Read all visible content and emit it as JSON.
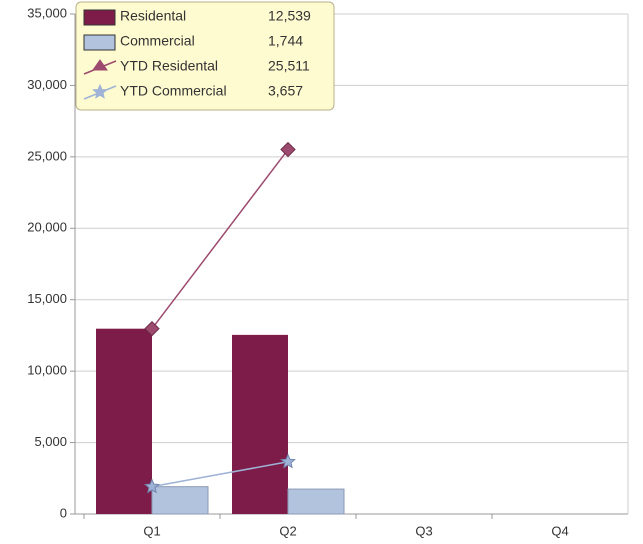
{
  "chart_data": {
    "type": "bar",
    "categories": [
      "Q1",
      "Q2",
      "Q3",
      "Q4"
    ],
    "ylim": [
      0,
      35000
    ],
    "yticks": [
      0,
      {
        "value": 5000,
        "label": "5,000"
      },
      {
        "value": 10000,
        "label": "10,000"
      },
      {
        "value": 15000,
        "label": "15,000"
      },
      {
        "value": 20000,
        "label": "20,000"
      },
      {
        "value": 25000,
        "label": "25,000"
      },
      {
        "value": 30000,
        "label": "30,000"
      },
      {
        "value": 35000,
        "label": "35,000"
      }
    ],
    "grid": true,
    "series": [
      {
        "name": "Residental",
        "type": "bar",
        "color": "#7d1c48",
        "values": [
          12972,
          12539,
          null,
          null
        ],
        "value_labels": [
          null,
          "12,539",
          null,
          null
        ]
      },
      {
        "name": "Commercial",
        "type": "bar",
        "color": "#b2c3de",
        "values": [
          1913,
          1744,
          null,
          null
        ],
        "value_labels": [
          null,
          "1,744",
          null,
          null
        ]
      },
      {
        "name": "YTD Residental",
        "type": "line",
        "marker": "diamond",
        "color": "#9c4a6e",
        "values": [
          12972,
          25511,
          null,
          null
        ],
        "value_labels": [
          null,
          "25,511",
          null,
          null
        ]
      },
      {
        "name": "YTD Commercial",
        "type": "line",
        "marker": "star",
        "color": "#9fb3d6",
        "values": [
          1913,
          3657,
          null,
          null
        ],
        "value_labels": [
          null,
          "3,657",
          null,
          null
        ]
      }
    ]
  }
}
